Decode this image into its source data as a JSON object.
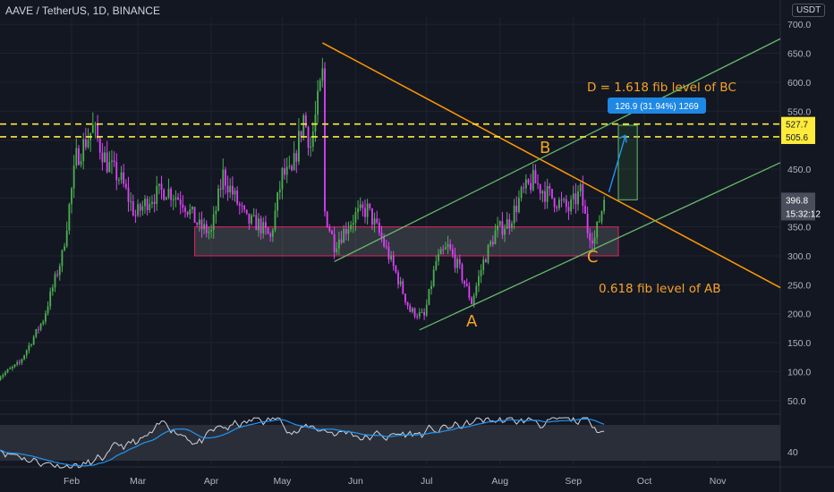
{
  "header": {
    "title": "AAVE / TetherUS, 1D, BINANCE",
    "currency": "USDT"
  },
  "price_labels": {
    "current_price": "396.8",
    "countdown": "15:32:12",
    "level_high": "527.7",
    "level_low": "505.6"
  },
  "annotations": {
    "d_target": "D = 1.618 fib level of BC",
    "c_level": "0.618 fib level of AB",
    "point_a": "A",
    "point_b": "B",
    "point_c": "C",
    "measure": "126.9 (31.94%) 1269"
  },
  "colors": {
    "background": "#131722",
    "bull": "#4caf50",
    "bear": "#e040fb",
    "fib_lines": "#ffeb3b",
    "trendline": "#ff9800",
    "channel": "#66bb6a",
    "rsi_band": "#2a2e39",
    "rsi_line": "#d1d4dc",
    "rsi_ma": "#2196f3",
    "measure_bg": "#1e88e5"
  },
  "chart_data": {
    "type": "candlestick",
    "symbol": "AAVE / TetherUS",
    "timeframe": "1D",
    "exchange": "BINANCE",
    "y_axis": {
      "ticks": [
        "700.0",
        "650.0",
        "600.0",
        "550.0",
        "500.0",
        "450.0",
        "400.0",
        "350.0",
        "300.0",
        "250.0",
        "200.0",
        "150.0",
        "100.0",
        "50.0"
      ],
      "range": [
        20,
        712
      ]
    },
    "x_axis": {
      "ticks": [
        "Feb",
        "Mar",
        "Apr",
        "May",
        "Jun",
        "Jul",
        "Aug",
        "Sep",
        "Oct",
        "Nov"
      ]
    },
    "price_path": [
      [
        "Jan 1",
        90
      ],
      [
        "Jan 10",
        115
      ],
      [
        "Jan 20",
        190
      ],
      [
        "Jan 28",
        300
      ],
      [
        "Feb 3",
        470
      ],
      [
        "Feb 10",
        520
      ],
      [
        "Feb 16",
        460
      ],
      [
        "Feb 22",
        430
      ],
      [
        "Feb 28",
        370
      ],
      [
        "Mar 6",
        400
      ],
      [
        "Mar 13",
        415
      ],
      [
        "Mar 20",
        395
      ],
      [
        "Mar 27",
        350
      ],
      [
        "Apr 1",
        340
      ],
      [
        "Apr 6",
        440
      ],
      [
        "Apr 11",
        400
      ],
      [
        "Apr 16",
        360
      ],
      [
        "Apr 21",
        355
      ],
      [
        "Apr 26",
        330
      ],
      [
        "May 1",
        440
      ],
      [
        "May 5",
        440
      ],
      [
        "May 10",
        540
      ],
      [
        "May 13",
        490
      ],
      [
        "May 18",
        612
      ],
      [
        "May 19",
        375
      ],
      [
        "May 23",
        320
      ],
      [
        "Jun 1",
        370
      ],
      [
        "Jun 6",
        380
      ],
      [
        "Jun 12",
        330
      ],
      [
        "Jun 18",
        270
      ],
      [
        "Jun 24",
        205
      ],
      [
        "Jun 30",
        195
      ],
      [
        "Jul 5",
        290
      ],
      [
        "Jul 10",
        315
      ],
      [
        "Jul 15",
        275
      ],
      [
        "Jul 20",
        220
      ],
      [
        "Jul 25",
        290
      ],
      [
        "Jul 30",
        340
      ],
      [
        "Aug 5",
        360
      ],
      [
        "Aug 10",
        405
      ],
      [
        "Aug 15",
        430
      ],
      [
        "Aug 20",
        410
      ],
      [
        "Aug 25",
        395
      ],
      [
        "Aug 30",
        380
      ],
      [
        "Sep 4",
        410
      ],
      [
        "Sep 7",
        345
      ],
      [
        "Sep 10",
        330
      ],
      [
        "Sep 14",
        396.8
      ]
    ],
    "horizontal_levels": [
      527.7,
      505.6
    ],
    "support_zone": {
      "from": "Mar 25",
      "to": "Sep 20",
      "low": 300,
      "high": 350
    },
    "rsi": {
      "tick_label": "40"
    }
  }
}
